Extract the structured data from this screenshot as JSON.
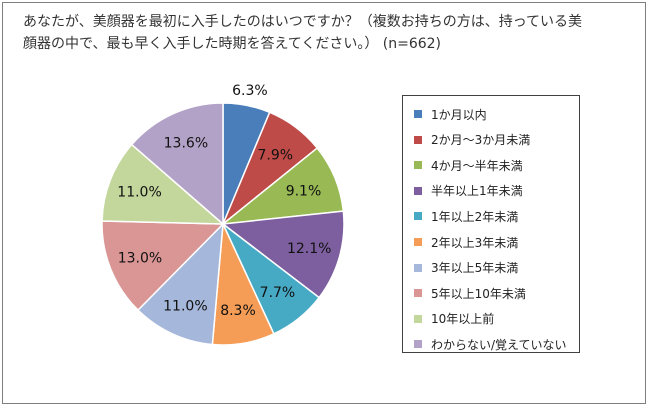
{
  "title": "あなたが、美顔器を最初に入手したのはいつですか？（複数お持ちの方は、持っている美顔器の中で、最も早く入手した時期を答えてください。） (n=662)",
  "chart_data": {
    "type": "pie",
    "title": "あなたが、美顔器を最初に入手したのはいつですか？（複数お持ちの方は、持っている美顔器の中で、最も早く入手した時期を答えてください。） (n=662)",
    "n": 662,
    "legend_position": "right",
    "slices": [
      {
        "label": "1か月以内",
        "value": 6.3,
        "display": "6.3%",
        "color": "#4a7ebb"
      },
      {
        "label": "2か月～3か月未満",
        "value": 7.9,
        "display": "7.9%",
        "color": "#be4b48"
      },
      {
        "label": "4か月～半年未満",
        "value": 9.1,
        "display": "9.1%",
        "color": "#98b954"
      },
      {
        "label": "半年以上1年未満",
        "value": 12.1,
        "display": "12.1%",
        "color": "#7d5fa0"
      },
      {
        "label": "1年以上2年未満",
        "value": 7.7,
        "display": "7.7%",
        "color": "#46aac5"
      },
      {
        "label": "2年以上3年未満",
        "value": 8.3,
        "display": "8.3%",
        "color": "#f59d56"
      },
      {
        "label": "3年以上5年未満",
        "value": 11.0,
        "display": "11.0%",
        "color": "#a5b7da"
      },
      {
        "label": "5年以上10年未満",
        "value": 13.0,
        "display": "13.0%",
        "color": "#d99695"
      },
      {
        "label": "10年以上前",
        "value": 11.0,
        "display": "11.0%",
        "color": "#c3d69b"
      },
      {
        "label": "わからない/覚えていない",
        "value": 13.6,
        "display": "13.6%",
        "color": "#b3a2c7"
      }
    ]
  }
}
